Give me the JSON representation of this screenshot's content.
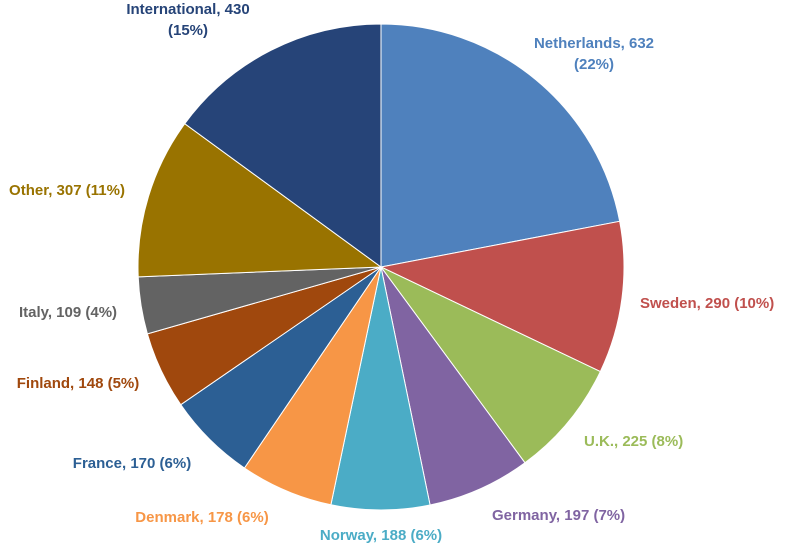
{
  "chart_data": {
    "type": "pie",
    "title": "",
    "start_angle_deg": 0,
    "direction": "clockwise",
    "slices": [
      {
        "label": "Netherlands",
        "value": 632,
        "percent": "22%",
        "color": "#4f81bd",
        "label_text": [
          "Netherlands, 632",
          "(22%)"
        ]
      },
      {
        "label": "Sweden",
        "value": 290,
        "percent": "10%",
        "color": "#c0504d",
        "label_text": [
          "Sweden, 290 (10%)"
        ]
      },
      {
        "label": "U.K.",
        "value": 225,
        "percent": "8%",
        "color": "#9bbb59",
        "label_text": [
          "U.K., 225 (8%)"
        ]
      },
      {
        "label": "Germany",
        "value": 197,
        "percent": "7%",
        "color": "#8064a2",
        "label_text": [
          "Germany, 197 (7%)"
        ]
      },
      {
        "label": "Norway",
        "value": 188,
        "percent": "6%",
        "color": "#4bacc6",
        "label_text": [
          "Norway, 188 (6%)"
        ]
      },
      {
        "label": "Denmark",
        "value": 178,
        "percent": "6%",
        "color": "#f79646",
        "label_text": [
          "Denmark, 178 (6%)"
        ]
      },
      {
        "label": "France",
        "value": 170,
        "percent": "6%",
        "color": "#2c5f94",
        "label_text": [
          "France, 170 (6%)"
        ]
      },
      {
        "label": "Finland",
        "value": 148,
        "percent": "5%",
        "color": "#a0480d",
        "label_text": [
          "Finland, 148 (5%)"
        ]
      },
      {
        "label": "Italy",
        "value": 109,
        "percent": "4%",
        "color": "#636363",
        "label_text": [
          "Italy, 109 (4%)"
        ]
      },
      {
        "label": "Other",
        "value": 307,
        "percent": "11%",
        "color": "#997300",
        "label_text": [
          "Other, 307 (11%)"
        ]
      },
      {
        "label": "International",
        "value": 430,
        "percent": "15%",
        "color": "#264478",
        "label_text": [
          "International, 430",
          "(15%)"
        ]
      }
    ]
  }
}
